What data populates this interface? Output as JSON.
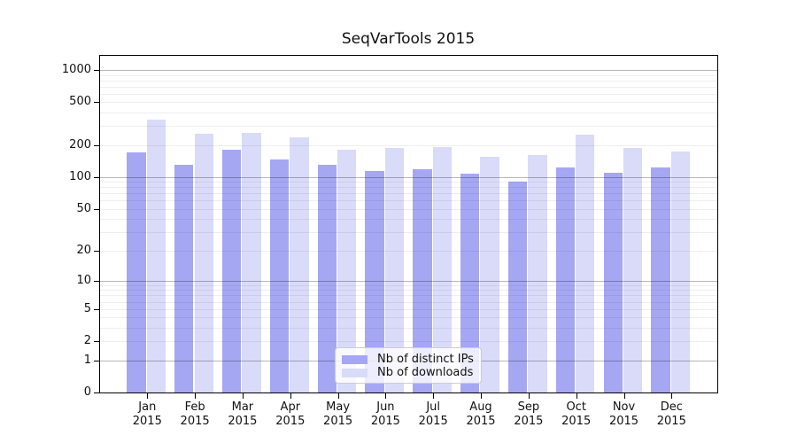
{
  "chart_data": {
    "type": "bar",
    "title": "SeqVarTools 2015",
    "categories": [
      "Jan",
      "Feb",
      "Mar",
      "Apr",
      "May",
      "Jun",
      "Jul",
      "Aug",
      "Sep",
      "Oct",
      "Nov",
      "Dec"
    ],
    "year": "2015",
    "yscale": "log1p",
    "yticks": [
      0,
      1,
      2,
      5,
      10,
      20,
      50,
      100,
      200,
      500,
      1000
    ],
    "ylim": [
      0,
      1380
    ],
    "grid": true,
    "legend_position": "lower-center-inside",
    "series": [
      {
        "name": "Nb of distinct IPs",
        "color": "#a6a7f3",
        "values": [
          170,
          130,
          180,
          147,
          130,
          115,
          119,
          107,
          90,
          124,
          110,
          124
        ]
      },
      {
        "name": "Nb of downloads",
        "color": "#d9dbf9",
        "values": [
          345,
          255,
          257,
          237,
          182,
          188,
          190,
          155,
          160,
          248,
          188,
          172
        ]
      }
    ],
    "colors": {
      "grid_minor": "#e9e9e9",
      "grid_major": "#b3b3b3",
      "spine": "#000000"
    }
  }
}
